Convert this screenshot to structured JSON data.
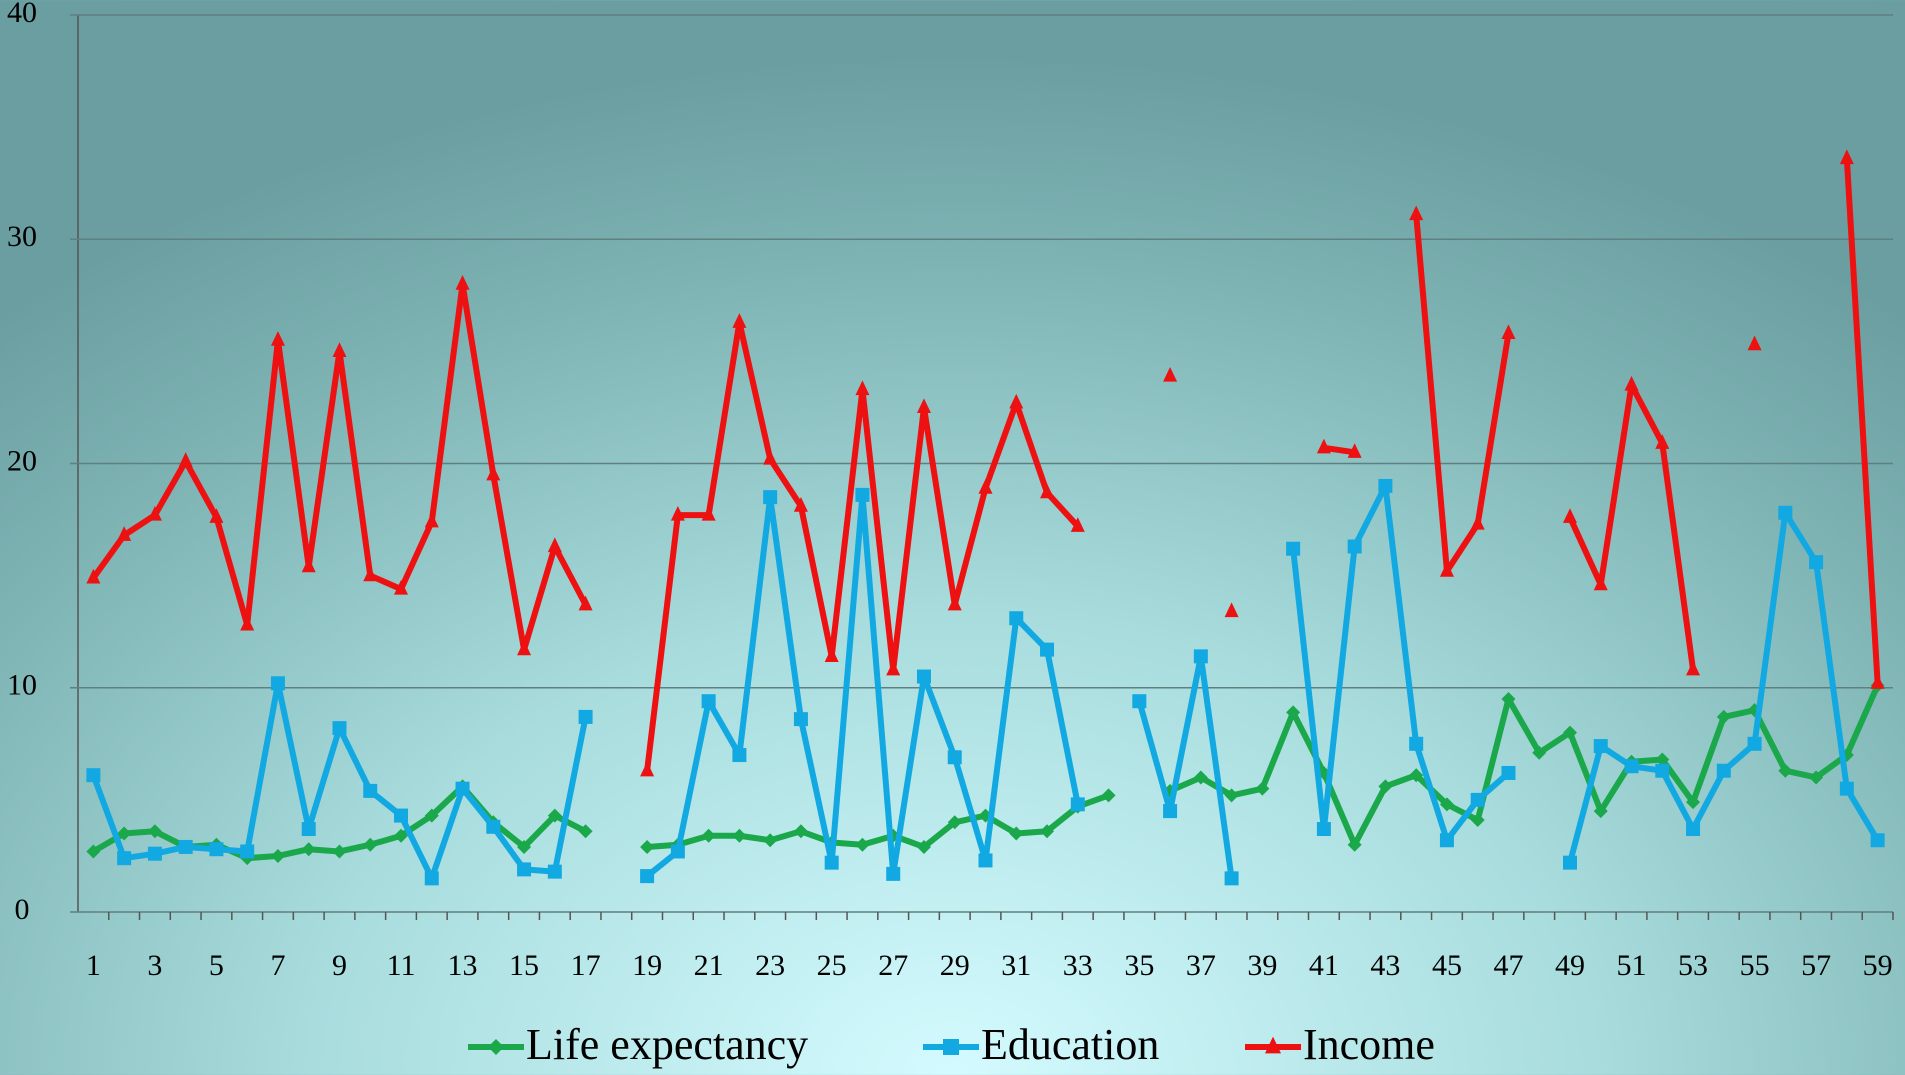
{
  "chart_data": {
    "type": "line",
    "categories": [
      "1",
      null,
      "3",
      null,
      "5",
      null,
      "7",
      null,
      "9",
      null,
      "11",
      null,
      "13",
      null,
      "15",
      null,
      "17",
      null,
      "19",
      null,
      "21",
      null,
      "23",
      null,
      "25",
      null,
      "27",
      null,
      "29",
      null,
      "31",
      null,
      "33",
      null,
      "35",
      null,
      "37",
      null,
      "39",
      null,
      "41",
      null,
      "43",
      null,
      "45",
      null,
      "47",
      null,
      "49",
      null,
      "51",
      null,
      "53",
      null,
      "55",
      null,
      "57",
      null,
      "59"
    ],
    "ylim": [
      0,
      40
    ],
    "yticks": [
      0,
      10,
      20,
      30,
      40
    ],
    "grid": true,
    "series": [
      {
        "name": "Life  expectancy",
        "color": "#1aa84a",
        "marker": "diamond",
        "values": [
          2.7,
          3.5,
          3.6,
          2.9,
          3.0,
          2.4,
          2.5,
          2.8,
          2.7,
          3.0,
          3.4,
          4.3,
          5.6,
          4.0,
          2.9,
          4.3,
          3.6,
          null,
          2.9,
          3.0,
          3.4,
          3.4,
          3.2,
          3.6,
          3.1,
          3.0,
          3.4,
          2.9,
          4.0,
          4.3,
          3.5,
          3.6,
          4.7,
          5.2,
          null,
          5.4,
          6.0,
          5.2,
          5.5,
          8.9,
          6.2,
          3.0,
          5.6,
          6.1,
          4.8,
          4.1,
          9.5,
          7.1,
          8.0,
          4.5,
          6.7,
          6.8,
          4.9,
          8.7,
          9.0,
          6.3,
          6.0,
          7.0,
          10.1
        ]
      },
      {
        "name": "Education",
        "color": "#12a9e2",
        "marker": "square",
        "values": [
          6.1,
          2.4,
          2.6,
          2.9,
          2.8,
          2.7,
          10.2,
          3.7,
          8.2,
          5.4,
          4.3,
          1.5,
          5.5,
          3.8,
          1.9,
          1.8,
          8.7,
          null,
          1.6,
          2.7,
          9.4,
          7.0,
          18.5,
          8.6,
          2.2,
          18.6,
          1.7,
          10.5,
          6.9,
          2.3,
          13.1,
          11.7,
          4.8,
          null,
          9.4,
          4.5,
          11.4,
          1.5,
          null,
          16.2,
          3.7,
          16.3,
          19.0,
          7.5,
          3.2,
          5.0,
          6.2,
          null,
          2.2,
          7.4,
          6.5,
          6.3,
          3.7,
          6.3,
          7.5,
          17.8,
          15.6,
          5.5,
          3.2
        ]
      },
      {
        "name": "Income",
        "color": "#ee1111",
        "marker": "triangle",
        "values": [
          14.9,
          16.8,
          17.7,
          20.1,
          17.6,
          12.8,
          25.5,
          15.4,
          25.0,
          15.0,
          14.4,
          17.4,
          28.0,
          19.5,
          11.7,
          16.3,
          13.7,
          null,
          6.3,
          17.7,
          17.7,
          26.3,
          20.2,
          18.1,
          11.4,
          23.3,
          10.8,
          22.5,
          13.7,
          18.9,
          22.7,
          18.7,
          17.2,
          null,
          null,
          23.9,
          null,
          13.4,
          null,
          null,
          20.7,
          20.5,
          null,
          31.1,
          15.2,
          17.3,
          25.8,
          null,
          17.6,
          14.6,
          23.5,
          20.9,
          10.8,
          null,
          25.3,
          null,
          null,
          33.6,
          10.2
        ]
      }
    ]
  }
}
